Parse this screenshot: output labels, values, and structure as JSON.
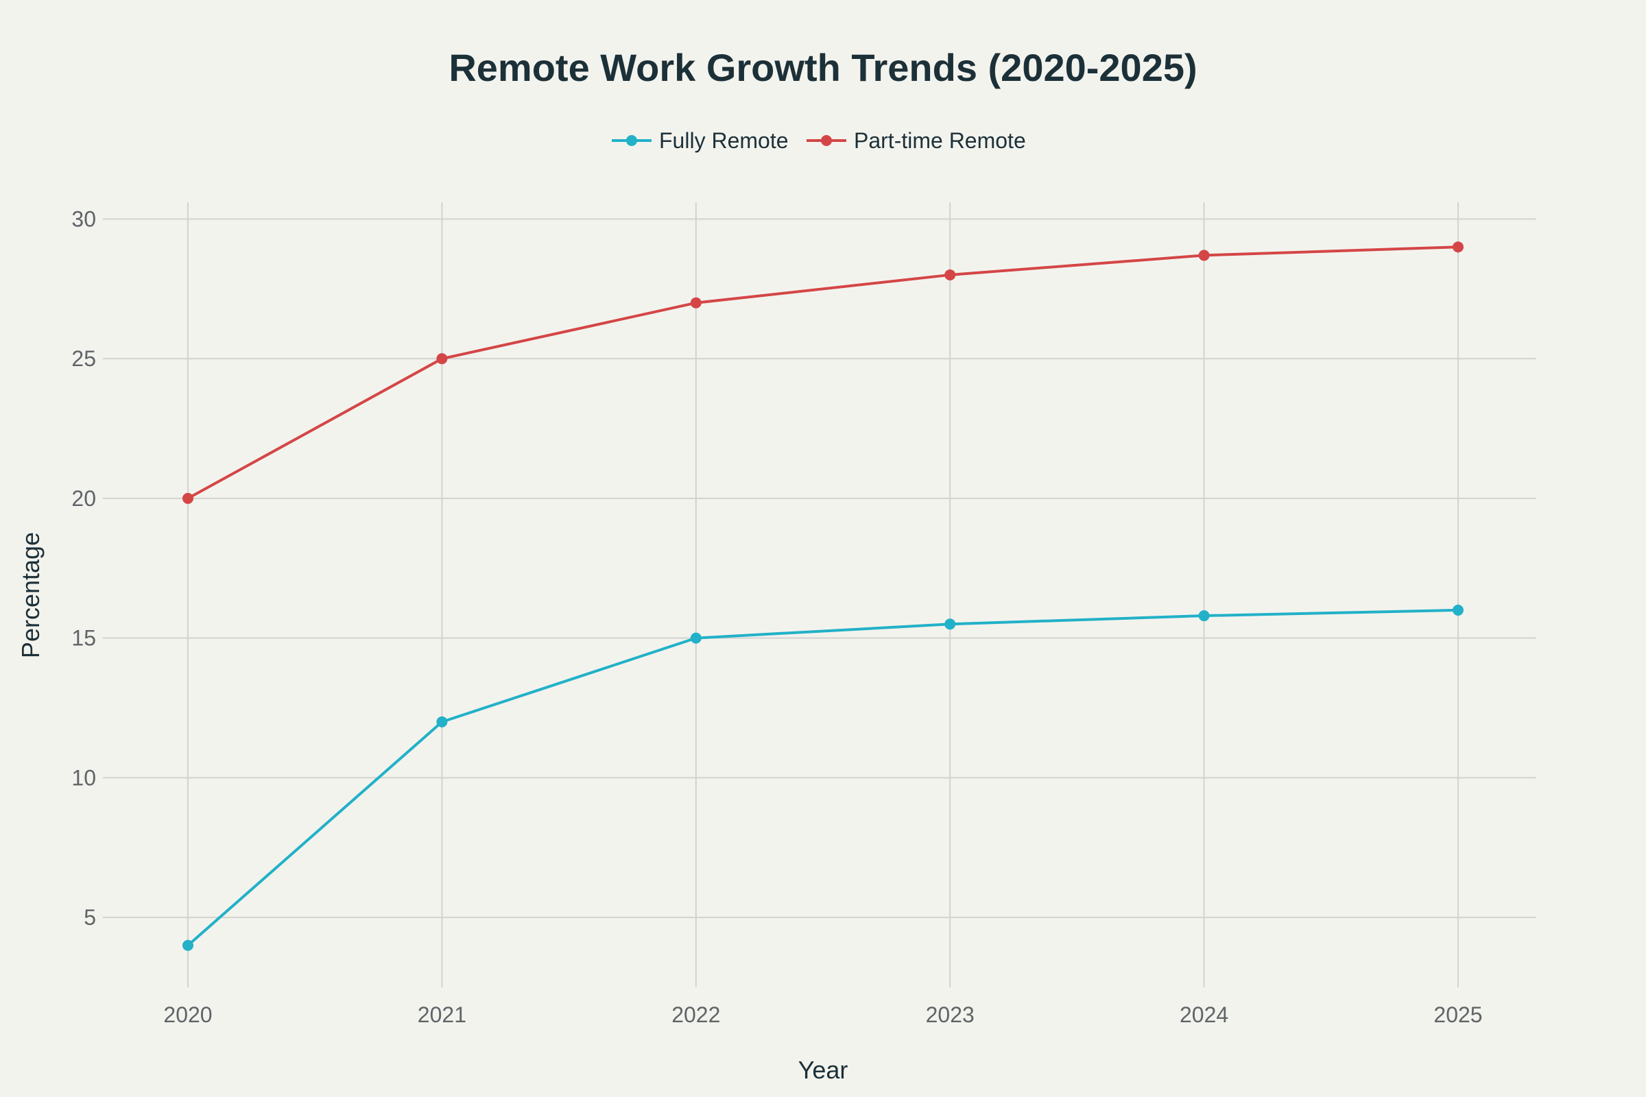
{
  "chart_data": {
    "type": "line",
    "title": "Remote Work Growth Trends (2020-2025)",
    "xlabel": "Year",
    "ylabel": "Percentage",
    "categories": [
      "2020",
      "2021",
      "2022",
      "2023",
      "2024",
      "2025"
    ],
    "y_ticks": [
      "5",
      "10",
      "15",
      "20",
      "25",
      "30"
    ],
    "ylim": [
      2.5,
      30.6
    ],
    "grid": true,
    "legend_position": "top-center",
    "series": [
      {
        "name": "Fully Remote",
        "color": "#22b1c8",
        "values": [
          4,
          12,
          15,
          15.5,
          15.8,
          16
        ]
      },
      {
        "name": "Part-time Remote",
        "color": "#d44646",
        "values": [
          20,
          25,
          27,
          28,
          28.7,
          29
        ]
      }
    ]
  }
}
